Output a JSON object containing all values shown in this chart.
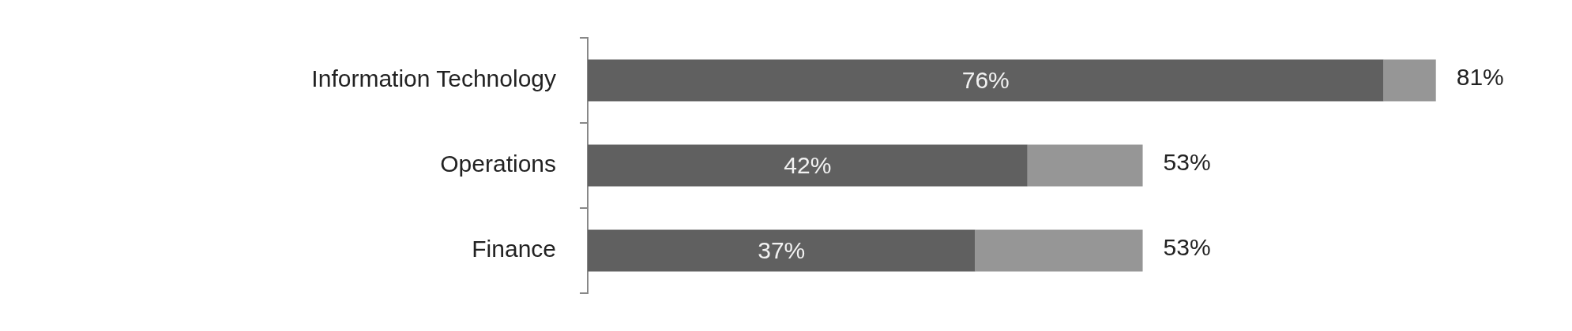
{
  "chart_data": {
    "type": "bar",
    "orientation": "horizontal",
    "stacked": true,
    "tick_labels": "y",
    "categories": [
      "Information Technology",
      "Operations",
      "Finance"
    ],
    "series": [
      {
        "color": "#606060",
        "values": [
          76,
          42,
          37
        ],
        "value_labels": [
          "76%",
          "42%",
          "37%"
        ]
      },
      {
        "color": "#969696",
        "values": [
          5,
          11,
          16
        ]
      }
    ],
    "totals": [
      "81%",
      "53%",
      "53%"
    ]
  }
}
